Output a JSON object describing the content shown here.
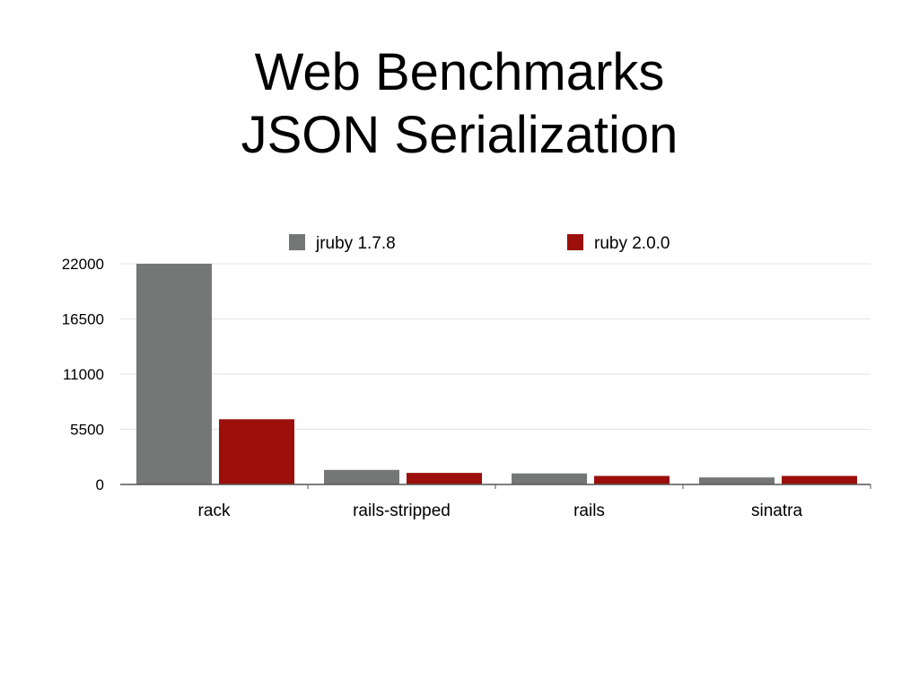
{
  "title": [
    "Web Benchmarks",
    "JSON Serialization"
  ],
  "chart_data": {
    "type": "bar",
    "categories": [
      "rack",
      "rails-stripped",
      "rails",
      "sinatra"
    ],
    "series": [
      {
        "name": "jruby 1.7.8",
        "color": "#747775",
        "values": [
          22000,
          1450,
          1100,
          700
        ]
      },
      {
        "name": "ruby 2.0.0",
        "color": "#9c0f0b",
        "values": [
          6500,
          1150,
          850,
          850
        ]
      }
    ],
    "yticks": [
      0,
      5500,
      11000,
      16500,
      22000
    ],
    "ylim": [
      0,
      22000
    ],
    "grid": true,
    "legend_position": "top"
  }
}
